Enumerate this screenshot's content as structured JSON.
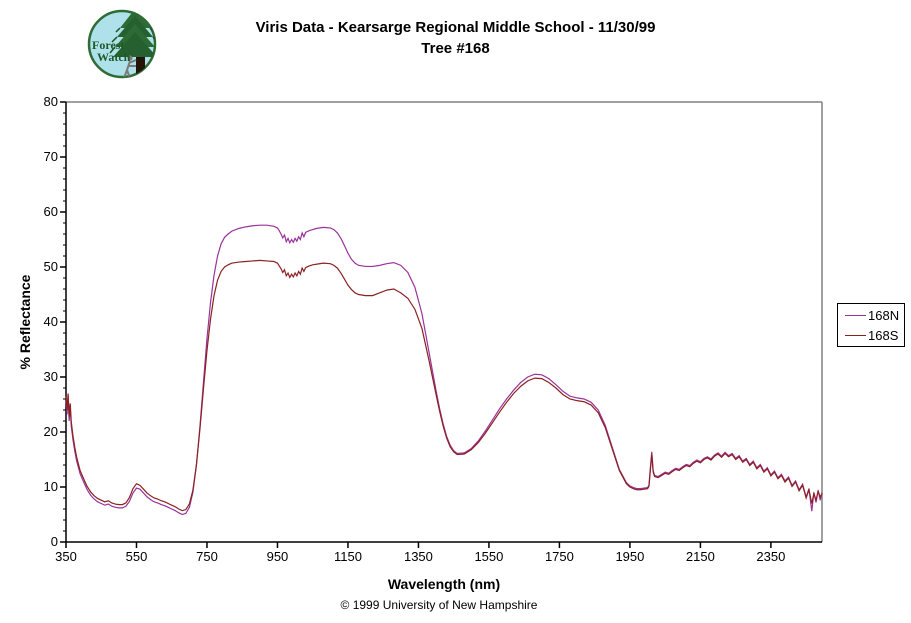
{
  "logo": {
    "line1": "Forest",
    "line2": "Watch"
  },
  "footer": {
    "copyright": "© 1999 University of New Hampshire"
  },
  "chart_data": {
    "type": "line",
    "title": "Viris Data - Kearsarge Regional Middle School - 11/30/99",
    "subtitle": "Tree #168",
    "xlabel": "Wavelength (nm)",
    "ylabel": "% Reflectance",
    "xlim": [
      350,
      2495
    ],
    "ylim": [
      0,
      80
    ],
    "x_ticks": [
      350,
      550,
      750,
      950,
      1150,
      1350,
      1550,
      1750,
      1950,
      2150,
      2350
    ],
    "y_ticks": [
      0,
      10,
      20,
      30,
      40,
      50,
      60,
      70,
      80
    ],
    "y_minor_step": 2,
    "grid": false,
    "legend_position": "right",
    "axis_color": "#000000",
    "border_color": "#808080",
    "x": [
      350,
      353,
      356,
      359,
      362,
      365,
      370,
      375,
      380,
      390,
      400,
      410,
      420,
      430,
      440,
      450,
      460,
      470,
      480,
      490,
      500,
      510,
      520,
      530,
      540,
      550,
      560,
      570,
      580,
      590,
      600,
      610,
      620,
      630,
      640,
      650,
      660,
      670,
      680,
      690,
      700,
      710,
      720,
      730,
      740,
      750,
      760,
      770,
      780,
      790,
      800,
      810,
      820,
      840,
      860,
      880,
      900,
      920,
      940,
      950,
      955,
      960,
      965,
      970,
      975,
      980,
      985,
      990,
      995,
      1000,
      1005,
      1010,
      1015,
      1020,
      1025,
      1030,
      1040,
      1050,
      1060,
      1080,
      1100,
      1110,
      1120,
      1130,
      1140,
      1150,
      1160,
      1170,
      1180,
      1200,
      1220,
      1240,
      1260,
      1280,
      1300,
      1320,
      1340,
      1360,
      1380,
      1400,
      1410,
      1420,
      1430,
      1440,
      1450,
      1460,
      1480,
      1500,
      1520,
      1540,
      1560,
      1580,
      1600,
      1620,
      1640,
      1660,
      1680,
      1700,
      1720,
      1740,
      1760,
      1780,
      1800,
      1820,
      1840,
      1860,
      1880,
      1900,
      1920,
      1940,
      1950,
      1960,
      1970,
      1980,
      1990,
      2000,
      2004,
      2008,
      2012,
      2016,
      2020,
      2030,
      2040,
      2050,
      2060,
      2070,
      2080,
      2090,
      2100,
      2110,
      2120,
      2130,
      2140,
      2150,
      2160,
      2170,
      2180,
      2190,
      2200,
      2210,
      2220,
      2230,
      2240,
      2250,
      2260,
      2270,
      2280,
      2290,
      2300,
      2310,
      2320,
      2330,
      2340,
      2350,
      2360,
      2370,
      2380,
      2390,
      2400,
      2410,
      2420,
      2430,
      2440,
      2450,
      2458,
      2466,
      2472,
      2478,
      2484,
      2490,
      2495
    ],
    "series": [
      {
        "name": "168N",
        "color": "#993399",
        "values": [
          25.8,
          23.2,
          26.5,
          22.0,
          24.5,
          21.0,
          18.5,
          16.5,
          14.8,
          12.4,
          10.9,
          9.5,
          8.5,
          7.8,
          7.3,
          7.0,
          6.7,
          6.9,
          6.5,
          6.3,
          6.2,
          6.2,
          6.5,
          7.4,
          8.9,
          9.8,
          9.6,
          8.9,
          8.2,
          7.7,
          7.3,
          7.1,
          6.8,
          6.6,
          6.3,
          6.0,
          5.7,
          5.3,
          5.0,
          5.2,
          6.3,
          9.0,
          14.0,
          21.0,
          29.0,
          37.0,
          43.5,
          48.5,
          52.0,
          54.2,
          55.4,
          56.0,
          56.5,
          57.0,
          57.3,
          57.5,
          57.6,
          57.6,
          57.4,
          57.1,
          56.6,
          56.0,
          55.3,
          55.8,
          54.6,
          55.2,
          54.4,
          55.0,
          54.5,
          55.2,
          54.7,
          55.5,
          55.0,
          56.2,
          55.5,
          56.3,
          56.6,
          56.8,
          57.0,
          57.2,
          57.1,
          56.8,
          56.2,
          55.2,
          53.9,
          52.5,
          51.4,
          50.7,
          50.3,
          50.1,
          50.1,
          50.3,
          50.6,
          50.8,
          50.3,
          49.0,
          46.3,
          41.5,
          34.5,
          27.5,
          24.3,
          21.5,
          19.2,
          17.6,
          16.6,
          16.1,
          16.2,
          17.0,
          18.4,
          20.2,
          22.2,
          24.2,
          26.0,
          27.6,
          29.0,
          30.0,
          30.5,
          30.4,
          29.7,
          28.6,
          27.4,
          26.5,
          26.2,
          26.0,
          25.4,
          24.0,
          21.2,
          17.2,
          13.2,
          10.8,
          10.2,
          9.9,
          9.7,
          9.7,
          9.8,
          9.9,
          10.3,
          13.5,
          16.4,
          13.0,
          12.1,
          11.9,
          12.3,
          12.7,
          12.5,
          13.0,
          13.4,
          13.2,
          13.7,
          14.1,
          13.9,
          14.5,
          14.9,
          14.6,
          15.2,
          15.5,
          15.1,
          15.8,
          16.2,
          15.6,
          16.3,
          15.7,
          16.1,
          15.2,
          15.7,
          14.7,
          15.2,
          14.1,
          14.7,
          13.5,
          14.1,
          12.9,
          13.5,
          12.2,
          12.9,
          11.7,
          12.3,
          11.1,
          11.8,
          10.3,
          11.1,
          9.5,
          10.5,
          8.2,
          9.7,
          5.6,
          9.0,
          7.2,
          9.4,
          7.6,
          9.0
        ]
      },
      {
        "name": "168S",
        "color": "#8b2121",
        "values": [
          26.5,
          24.0,
          27.0,
          22.8,
          25.2,
          21.8,
          19.2,
          17.2,
          15.5,
          13.0,
          11.5,
          10.1,
          9.1,
          8.4,
          7.9,
          7.6,
          7.3,
          7.5,
          7.1,
          6.9,
          6.8,
          6.8,
          7.1,
          8.1,
          9.7,
          10.6,
          10.3,
          9.6,
          8.9,
          8.4,
          8.0,
          7.8,
          7.5,
          7.3,
          7.0,
          6.7,
          6.4,
          6.0,
          5.7,
          5.9,
          6.9,
          9.4,
          14.0,
          20.5,
          27.8,
          34.8,
          40.5,
          44.8,
          47.6,
          49.2,
          50.0,
          50.4,
          50.7,
          50.9,
          51.0,
          51.1,
          51.2,
          51.1,
          51.0,
          50.7,
          50.2,
          49.7,
          49.0,
          49.5,
          48.4,
          48.9,
          48.1,
          48.7,
          48.2,
          48.9,
          48.4,
          49.2,
          48.7,
          49.8,
          49.2,
          49.9,
          50.2,
          50.4,
          50.5,
          50.7,
          50.6,
          50.3,
          49.8,
          48.9,
          47.8,
          46.7,
          45.9,
          45.3,
          45.0,
          44.8,
          44.8,
          45.3,
          45.8,
          46.0,
          45.3,
          44.3,
          42.3,
          38.8,
          33.0,
          26.8,
          23.8,
          21.1,
          18.9,
          17.3,
          16.4,
          15.9,
          16.0,
          16.8,
          18.1,
          19.8,
          21.7,
          23.6,
          25.4,
          27.0,
          28.3,
          29.3,
          29.8,
          29.7,
          29.0,
          28.0,
          26.8,
          26.0,
          25.7,
          25.5,
          24.9,
          23.5,
          20.8,
          16.9,
          13.0,
          10.6,
          10.0,
          9.7,
          9.5,
          9.5,
          9.6,
          9.7,
          10.1,
          13.0,
          15.9,
          12.7,
          11.9,
          11.7,
          12.1,
          12.5,
          12.3,
          12.8,
          13.2,
          13.0,
          13.5,
          13.9,
          13.7,
          14.3,
          14.7,
          14.4,
          15.0,
          15.3,
          14.9,
          15.6,
          16.0,
          15.4,
          16.1,
          15.5,
          15.9,
          15.0,
          15.5,
          14.5,
          15.0,
          13.9,
          14.5,
          13.3,
          13.9,
          12.7,
          13.3,
          12.0,
          12.7,
          11.5,
          12.1,
          10.9,
          11.6,
          10.1,
          10.9,
          9.3,
          10.3,
          8.0,
          9.5,
          7.0,
          8.8,
          7.6,
          9.2,
          8.2,
          8.8
        ]
      }
    ]
  }
}
